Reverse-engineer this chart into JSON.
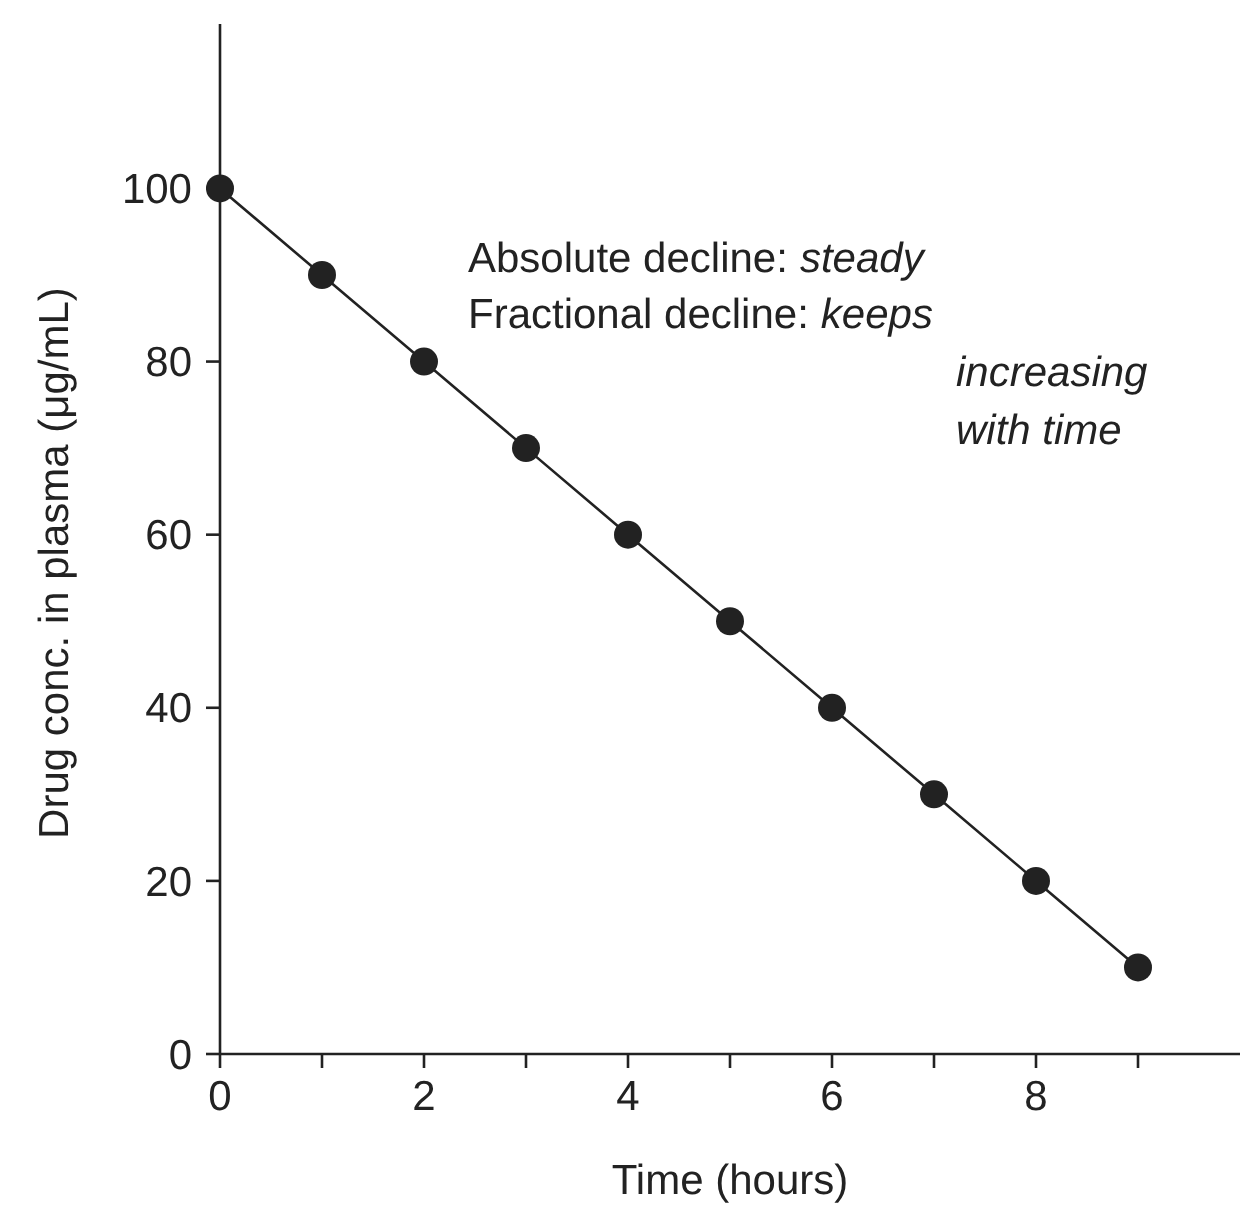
{
  "chart_data": {
    "type": "line",
    "xlabel": "Time (hours)",
    "ylabel": "Drug conc. in plasma (μg/mL)",
    "x": [
      0,
      1,
      2,
      3,
      4,
      5,
      6,
      7,
      8,
      9
    ],
    "series": [
      {
        "color": "#222222",
        "values": [
          100,
          90,
          80,
          70,
          60,
          50,
          40,
          30,
          20,
          10
        ]
      }
    ],
    "marker": "circle",
    "line_style": "solid",
    "grid": false,
    "xlim": [
      0,
      10
    ],
    "ylim": [
      0,
      119
    ],
    "xticks": [
      0,
      {
        "value": 1,
        "label": null
      },
      2,
      {
        "value": 3,
        "label": null
      },
      4,
      {
        "value": 5,
        "label": null
      },
      6,
      {
        "value": 7,
        "label": null
      },
      8,
      {
        "value": 9,
        "label": null
      }
    ],
    "yticks": [
      0,
      20,
      40,
      60,
      80,
      100
    ],
    "annotations": [
      "Absolute decline: steady",
      "Fractional decline: keeps increasing with time"
    ]
  }
}
